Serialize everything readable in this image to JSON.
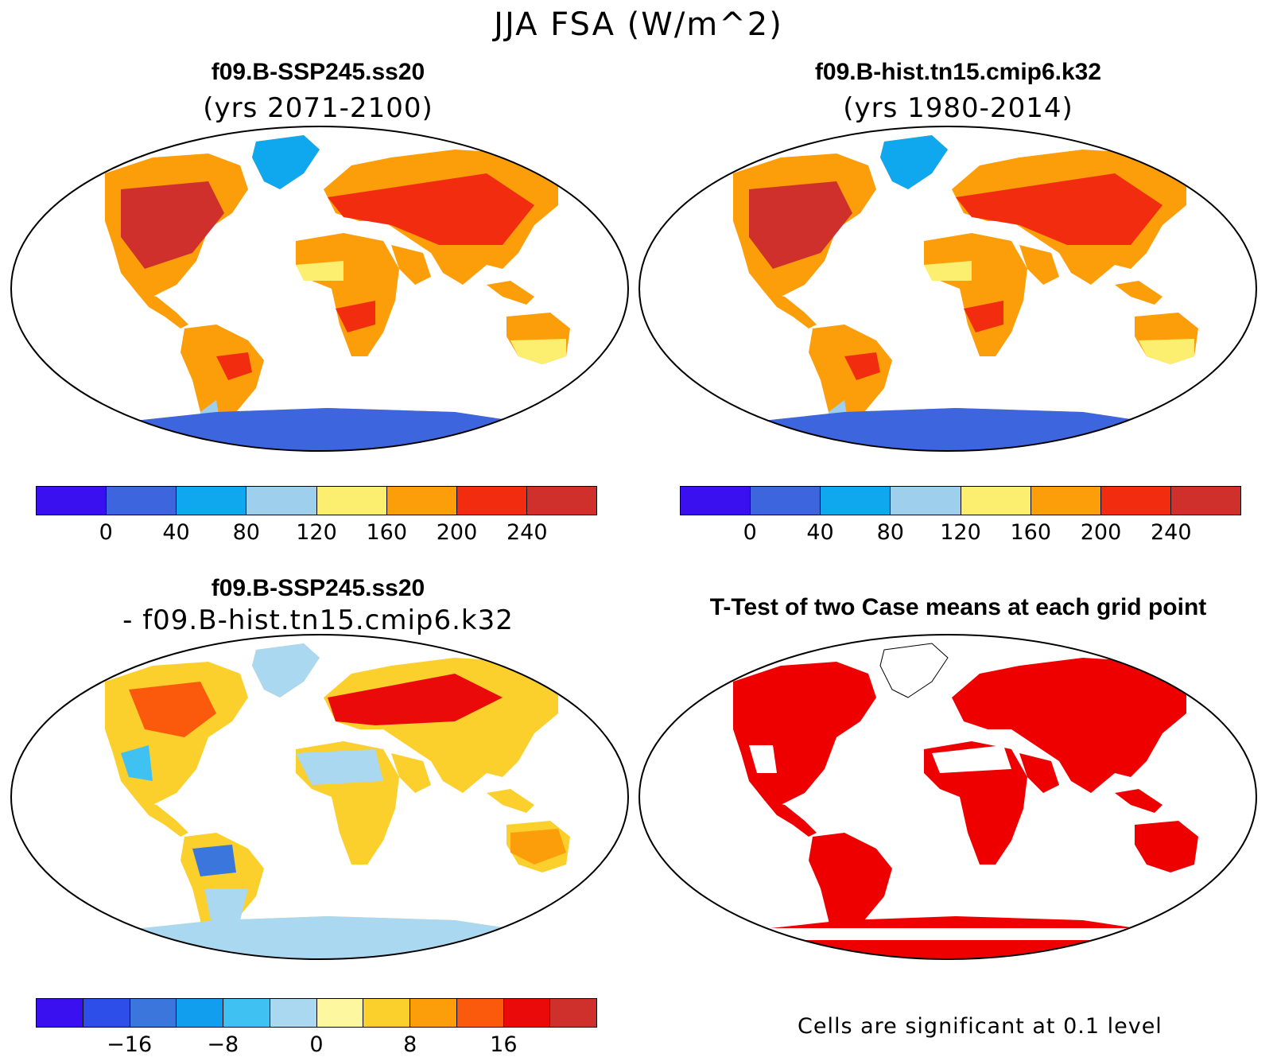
{
  "title": "JJA FSA (W/m^2)",
  "panels": {
    "top_left": {
      "title": "f09.B-SSP245.ss20",
      "subtitle": "(yrs 2071-2100)"
    },
    "top_right": {
      "title": "f09.B-hist.tn15.cmip6.k32",
      "subtitle": "(yrs 1980-2014)"
    },
    "bottom_left": {
      "title": "f09.B-SSP245.ss20",
      "subtitle": "- f09.B-hist.tn15.cmip6.k32"
    },
    "bottom_right": {
      "title": "T-Test of two Case means at each grid point",
      "note": "Cells are significant at 0.1 level"
    }
  },
  "colorbars": {
    "abs": {
      "colors": [
        "#3a10f0",
        "#3d66de",
        "#0fa7ee",
        "#9ed0ee",
        "#fcee6e",
        "#fb9e0a",
        "#f22c0e",
        "#d0302c"
      ],
      "ticks": [
        "0",
        "40",
        "80",
        "120",
        "160",
        "200",
        "240"
      ]
    },
    "diff": {
      "colors": [
        "#3a10f0",
        "#2d4ee8",
        "#3a76dc",
        "#119eee",
        "#3fc2f2",
        "#a9d8f0",
        "#fdf7a0",
        "#fbcf2c",
        "#fb9e0a",
        "#fb5a0c",
        "#ea0a0a",
        "#d0302c"
      ],
      "ticks": [
        "-16",
        "-8",
        "0",
        "8",
        "16"
      ]
    },
    "ttest": {
      "colors": [
        "#ee0000"
      ]
    }
  }
}
